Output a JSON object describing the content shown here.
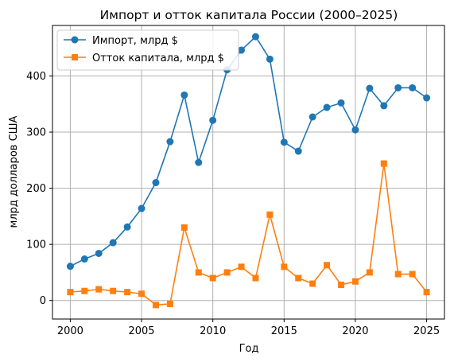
{
  "chart_data": {
    "type": "line",
    "title": "Импорт и отток капитала России (2000–2025)",
    "xlabel": "Год",
    "ylabel": "млрд долларов США",
    "x": [
      2000,
      2001,
      2002,
      2003,
      2004,
      2005,
      2006,
      2007,
      2008,
      2009,
      2010,
      2011,
      2012,
      2013,
      2014,
      2015,
      2016,
      2017,
      2018,
      2019,
      2020,
      2021,
      2022,
      2023,
      2024,
      2025
    ],
    "series": [
      {
        "name": "Импорт, млрд $",
        "color": "#1f77b4",
        "marker": "circle",
        "values": [
          61,
          74,
          84,
          103,
          131,
          164,
          210,
          283,
          366,
          246,
          321,
          411,
          446,
          470,
          430,
          282,
          266,
          327,
          344,
          352,
          304,
          378,
          347,
          379,
          379,
          361
        ]
      },
      {
        "name": "Отток капитала, млрд $",
        "color": "#ff7f0e",
        "marker": "square",
        "values": [
          15,
          17,
          20,
          17,
          15,
          12,
          -8,
          -6,
          130,
          50,
          40,
          50,
          60,
          40,
          153,
          60,
          40,
          30,
          63,
          28,
          34,
          50,
          244,
          47,
          47,
          15
        ]
      }
    ],
    "xlim": [
      1998.75,
      2026.25
    ],
    "ylim": [
      -33,
      490
    ],
    "xticks": [
      "2000",
      "2005",
      "2010",
      "2015",
      "2020",
      "2025"
    ],
    "yticks": [
      "0",
      "100",
      "200",
      "300",
      "400"
    ],
    "grid": true,
    "legend_position": "top-left"
  }
}
